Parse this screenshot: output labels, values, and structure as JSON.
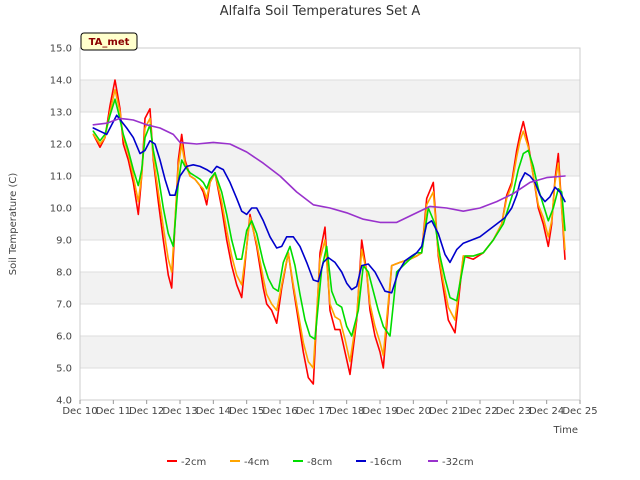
{
  "chart_data": {
    "type": "line",
    "title": "Alfalfa Soil Temperatures Set A",
    "xlabel": "Time",
    "ylabel": "Soil Temperature (C)",
    "badge": "TA_met",
    "ylim": [
      4.0,
      15.0
    ],
    "xlim": [
      0,
      15
    ],
    "yticks": [
      4.0,
      5.0,
      6.0,
      7.0,
      8.0,
      9.0,
      10.0,
      11.0,
      12.0,
      13.0,
      14.0,
      15.0
    ],
    "ytick_labels": [
      "4.0",
      "5.0",
      "6.0",
      "7.0",
      "8.0",
      "9.0",
      "10.0",
      "11.0",
      "12.0",
      "13.0",
      "14.0",
      "15.0"
    ],
    "xtick_labels": [
      "Dec 10",
      "Dec 11",
      "Dec 12",
      "Dec 13",
      "Dec 14",
      "Dec 15",
      "Dec 16",
      "Dec 17",
      "Dec 18",
      "Dec 19",
      "Dec 20",
      "Dec 21",
      "Dec 22",
      "Dec 23",
      "Dec 24",
      "Dec 25"
    ],
    "x_note": "x values are days since Dec 10",
    "series": [
      {
        "name": "-2cm",
        "color": "#ff0000",
        "x": [
          0.4,
          0.6,
          0.75,
          0.9,
          1.05,
          1.2,
          1.3,
          1.45,
          1.6,
          1.75,
          1.85,
          1.95,
          2.1,
          2.2,
          2.35,
          2.5,
          2.65,
          2.75,
          2.85,
          2.95,
          3.05,
          3.15,
          3.3,
          3.45,
          3.6,
          3.7,
          3.8,
          3.9,
          4.05,
          4.25,
          4.4,
          4.55,
          4.7,
          4.85,
          5.0,
          5.1,
          5.3,
          5.5,
          5.6,
          5.75,
          5.9,
          6.05,
          6.25,
          6.4,
          6.55,
          6.7,
          6.85,
          7.0,
          7.2,
          7.35,
          7.5,
          7.65,
          7.8,
          7.95,
          8.1,
          8.3,
          8.45,
          8.6,
          8.7,
          8.85,
          9.0,
          9.1,
          9.35,
          9.6,
          9.9,
          10.1,
          10.25,
          10.4,
          10.6,
          10.75,
          10.9,
          11.05,
          11.25,
          11.5,
          11.8,
          12.1,
          12.4,
          12.65,
          12.8,
          12.95,
          13.1,
          13.2,
          13.3,
          13.45,
          13.6,
          13.75,
          13.9,
          14.05,
          14.15,
          14.25,
          14.35,
          14.45,
          14.55
        ],
        "y": [
          12.3,
          11.9,
          12.2,
          13.2,
          14.0,
          13.1,
          12.0,
          11.5,
          10.8,
          9.8,
          11.0,
          12.8,
          13.1,
          11.5,
          10.2,
          9.0,
          7.9,
          7.5,
          9.5,
          11.5,
          12.3,
          11.5,
          11.0,
          10.9,
          10.7,
          10.5,
          10.1,
          10.8,
          11.1,
          10.0,
          9.0,
          8.2,
          7.6,
          7.2,
          8.8,
          9.8,
          8.8,
          7.5,
          7.0,
          6.8,
          6.4,
          7.5,
          8.6,
          7.5,
          6.5,
          5.5,
          4.7,
          4.5,
          8.6,
          9.4,
          6.8,
          6.2,
          6.2,
          5.5,
          4.8,
          6.5,
          9.0,
          8.0,
          6.8,
          6.0,
          5.5,
          5.0,
          8.2,
          8.3,
          8.4,
          8.5,
          8.6,
          10.3,
          10.8,
          8.5,
          7.5,
          6.5,
          6.1,
          8.5,
          8.4,
          8.6,
          9.0,
          9.5,
          10.4,
          10.8,
          11.8,
          12.3,
          12.7,
          12.0,
          11.0,
          10.0,
          9.5,
          8.8,
          9.5,
          10.9,
          11.7,
          10.0,
          8.4
        ]
      },
      {
        "name": "-4cm",
        "color": "#ffa500",
        "x": [
          0.4,
          0.6,
          0.75,
          0.9,
          1.05,
          1.2,
          1.3,
          1.45,
          1.6,
          1.75,
          1.85,
          1.95,
          2.1,
          2.2,
          2.35,
          2.5,
          2.65,
          2.75,
          2.85,
          2.95,
          3.05,
          3.15,
          3.3,
          3.45,
          3.6,
          3.7,
          3.8,
          3.9,
          4.05,
          4.25,
          4.4,
          4.55,
          4.7,
          4.85,
          5.0,
          5.1,
          5.3,
          5.5,
          5.6,
          5.75,
          5.9,
          6.05,
          6.25,
          6.4,
          6.55,
          6.7,
          6.85,
          7.0,
          7.2,
          7.35,
          7.5,
          7.65,
          7.8,
          7.95,
          8.1,
          8.3,
          8.45,
          8.6,
          8.7,
          8.85,
          9.0,
          9.1,
          9.35,
          9.6,
          9.9,
          10.1,
          10.25,
          10.4,
          10.6,
          10.75,
          10.9,
          11.05,
          11.25,
          11.5,
          11.8,
          12.1,
          12.4,
          12.65,
          12.8,
          12.95,
          13.1,
          13.2,
          13.3,
          13.45,
          13.6,
          13.75,
          13.9,
          14.05,
          14.15,
          14.25,
          14.35,
          14.45,
          14.55
        ],
        "y": [
          12.3,
          12.0,
          12.2,
          13.0,
          13.7,
          13.0,
          12.2,
          11.7,
          11.0,
          10.2,
          11.0,
          12.5,
          12.8,
          11.6,
          10.5,
          9.4,
          8.4,
          8.0,
          9.6,
          11.3,
          12.0,
          11.4,
          11.0,
          10.9,
          10.7,
          10.6,
          10.3,
          10.8,
          11.1,
          10.2,
          9.3,
          8.5,
          7.9,
          7.6,
          8.8,
          9.7,
          8.9,
          7.8,
          7.3,
          7.0,
          6.8,
          7.6,
          8.6,
          7.6,
          6.7,
          5.8,
          5.2,
          5.0,
          8.4,
          9.0,
          7.0,
          6.6,
          6.5,
          5.9,
          5.2,
          6.6,
          8.7,
          8.0,
          7.0,
          6.3,
          5.8,
          5.4,
          8.2,
          8.3,
          8.4,
          8.5,
          8.6,
          10.1,
          10.5,
          8.6,
          7.7,
          6.9,
          6.5,
          8.5,
          8.5,
          8.6,
          9.0,
          9.5,
          10.3,
          10.7,
          11.6,
          12.1,
          12.4,
          11.9,
          11.0,
          10.1,
          9.7,
          9.1,
          9.6,
          10.8,
          11.4,
          10.0,
          8.7
        ]
      },
      {
        "name": "-8cm",
        "color": "#00dd00",
        "x": [
          0.4,
          0.6,
          0.75,
          0.9,
          1.05,
          1.15,
          1.3,
          1.45,
          1.6,
          1.75,
          1.85,
          1.95,
          2.1,
          2.2,
          2.35,
          2.5,
          2.65,
          2.8,
          2.95,
          3.05,
          3.15,
          3.3,
          3.45,
          3.6,
          3.7,
          3.8,
          3.9,
          4.05,
          4.25,
          4.4,
          4.55,
          4.7,
          4.85,
          5.0,
          5.15,
          5.3,
          5.5,
          5.65,
          5.8,
          5.95,
          6.1,
          6.3,
          6.45,
          6.6,
          6.75,
          6.9,
          7.05,
          7.25,
          7.4,
          7.55,
          7.7,
          7.85,
          8.0,
          8.15,
          8.35,
          8.5,
          8.65,
          8.8,
          8.95,
          9.1,
          9.3,
          9.5,
          9.7,
          9.9,
          10.1,
          10.25,
          10.45,
          10.65,
          10.8,
          10.95,
          11.1,
          11.3,
          11.55,
          11.8,
          12.1,
          12.4,
          12.7,
          12.85,
          13.0,
          13.15,
          13.3,
          13.45,
          13.6,
          13.75,
          13.9,
          14.05,
          14.2,
          14.35,
          14.45,
          14.55
        ],
        "y": [
          12.4,
          12.1,
          12.3,
          12.9,
          13.4,
          13.0,
          12.3,
          11.8,
          11.2,
          10.7,
          11.2,
          12.2,
          12.6,
          11.8,
          11.0,
          10.0,
          9.2,
          8.8,
          10.8,
          11.5,
          11.3,
          11.1,
          11.0,
          10.9,
          10.8,
          10.6,
          10.9,
          11.1,
          10.5,
          9.8,
          9.0,
          8.4,
          8.4,
          9.3,
          9.6,
          9.2,
          8.3,
          7.8,
          7.5,
          7.4,
          8.3,
          8.8,
          8.2,
          7.3,
          6.5,
          6.0,
          5.9,
          8.1,
          8.8,
          7.4,
          7.0,
          6.9,
          6.3,
          6.0,
          6.8,
          8.2,
          8.0,
          7.4,
          6.8,
          6.3,
          6.0,
          8.0,
          8.2,
          8.4,
          8.6,
          8.6,
          10.0,
          9.5,
          8.5,
          7.8,
          7.2,
          7.1,
          8.5,
          8.5,
          8.6,
          9.0,
          9.5,
          10.0,
          10.5,
          11.2,
          11.7,
          11.8,
          11.3,
          10.6,
          10.1,
          9.6,
          10.0,
          10.6,
          10.5,
          9.3
        ]
      },
      {
        "name": "-16cm",
        "color": "#0000cc",
        "x": [
          0.4,
          0.6,
          0.8,
          0.95,
          1.1,
          1.25,
          1.4,
          1.6,
          1.8,
          1.95,
          2.1,
          2.25,
          2.4,
          2.55,
          2.7,
          2.85,
          3.0,
          3.2,
          3.4,
          3.6,
          3.8,
          3.95,
          4.1,
          4.3,
          4.5,
          4.7,
          4.85,
          5.0,
          5.15,
          5.3,
          5.5,
          5.7,
          5.9,
          6.05,
          6.2,
          6.4,
          6.6,
          6.8,
          7.0,
          7.15,
          7.3,
          7.45,
          7.65,
          7.85,
          8.0,
          8.15,
          8.3,
          8.45,
          8.65,
          8.85,
          9.0,
          9.15,
          9.35,
          9.55,
          9.75,
          9.95,
          10.1,
          10.25,
          10.4,
          10.55,
          10.75,
          10.95,
          11.1,
          11.3,
          11.5,
          11.75,
          12.0,
          12.25,
          12.5,
          12.75,
          12.95,
          13.1,
          13.2,
          13.35,
          13.5,
          13.65,
          13.8,
          13.95,
          14.1,
          14.25,
          14.4,
          14.55
        ],
        "y": [
          12.5,
          12.4,
          12.3,
          12.6,
          12.9,
          12.7,
          12.5,
          12.2,
          11.7,
          11.8,
          12.1,
          12.0,
          11.5,
          10.9,
          10.4,
          10.4,
          11.0,
          11.3,
          11.35,
          11.3,
          11.2,
          11.1,
          11.3,
          11.2,
          10.8,
          10.3,
          9.9,
          9.8,
          10.0,
          10.0,
          9.6,
          9.1,
          8.75,
          8.8,
          9.1,
          9.1,
          8.8,
          8.3,
          7.75,
          7.7,
          8.3,
          8.45,
          8.3,
          8.0,
          7.65,
          7.45,
          7.55,
          8.2,
          8.25,
          8.0,
          7.7,
          7.4,
          7.35,
          8.0,
          8.35,
          8.5,
          8.6,
          8.8,
          9.5,
          9.6,
          9.2,
          8.55,
          8.3,
          8.7,
          8.9,
          9.0,
          9.1,
          9.3,
          9.5,
          9.7,
          10.0,
          10.4,
          10.8,
          11.1,
          11.0,
          10.8,
          10.4,
          10.2,
          10.35,
          10.65,
          10.5,
          10.2
        ]
      },
      {
        "name": "-32cm",
        "color": "#9932cc",
        "x": [
          0.4,
          0.8,
          1.2,
          1.6,
          2.0,
          2.4,
          2.8,
          3.0,
          3.5,
          4.0,
          4.5,
          5.0,
          5.5,
          6.0,
          6.5,
          7.0,
          7.5,
          8.0,
          8.5,
          9.0,
          9.5,
          10.0,
          10.5,
          11.0,
          11.5,
          12.0,
          12.5,
          13.0,
          13.5,
          14.0,
          14.55
        ],
        "y": [
          12.6,
          12.65,
          12.8,
          12.75,
          12.6,
          12.5,
          12.3,
          12.05,
          12.0,
          12.05,
          12.0,
          11.75,
          11.4,
          11.0,
          10.5,
          10.1,
          10.0,
          9.85,
          9.65,
          9.55,
          9.55,
          9.8,
          10.05,
          10.0,
          9.9,
          10.0,
          10.2,
          10.45,
          10.8,
          10.95,
          11.0
        ]
      }
    ]
  }
}
